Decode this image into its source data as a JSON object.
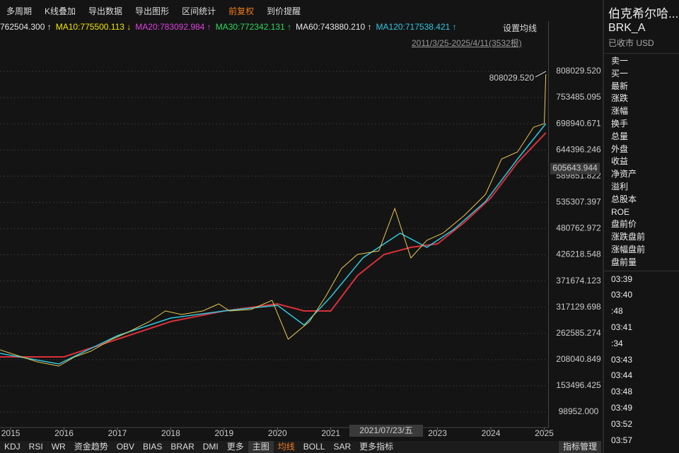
{
  "toolbar": {
    "items": [
      "多周期",
      "K线叠加",
      "导出数据",
      "导出图形",
      "区间统计",
      "前复权",
      "到价提醒"
    ],
    "active": 5
  },
  "ma_legend": [
    {
      "text": "762504.300 ↑",
      "color": "#e6e6e6"
    },
    {
      "text": "MA10:775500.113 ↓",
      "color": "#f2e600"
    },
    {
      "text": "MA20:783092.984 ↑",
      "color": "#e040e0"
    },
    {
      "text": "MA30:772342.131 ↑",
      "color": "#30d860"
    },
    {
      "text": "MA60:743880.210 ↑",
      "color": "#e6e6e6"
    },
    {
      "text": "MA120:717538.421 ↑",
      "color": "#30c8e0"
    }
  ],
  "ma_settings": "设置均线",
  "date_range": "2011/3/25-2025/4/11(3532根)",
  "chart_data": {
    "type": "line",
    "xlim": [
      2014.8,
      2025.08
    ],
    "xticks": [
      2015,
      2016,
      2017,
      2018,
      2019,
      2020,
      2021,
      2023,
      2024,
      2025
    ],
    "ylim": [
      73960,
      885950
    ],
    "yticks": [
      {
        "value": 808029.52,
        "label": "808029.520"
      },
      {
        "value": 753485.095,
        "label": "753485.095"
      },
      {
        "value": 698940.671,
        "label": "698940.671"
      },
      {
        "value": 644396.246,
        "label": "644396.246"
      },
      {
        "value": 589851.822,
        "label": "589851.822"
      },
      {
        "value": 535307.397,
        "label": "535307.397"
      },
      {
        "value": 480762.972,
        "label": "480762.972"
      },
      {
        "value": 426218.548,
        "label": "426218.548"
      },
      {
        "value": 371674.123,
        "label": "371674.123"
      },
      {
        "value": 317129.698,
        "label": "317129.698"
      },
      {
        "value": 262585.274,
        "label": "262585.274"
      },
      {
        "value": 208040.849,
        "label": "208040.849"
      },
      {
        "value": 153496.425,
        "label": "153496.425"
      },
      {
        "value": 98952,
        "label": "98952.000"
      }
    ],
    "grid": true,
    "series": [
      {
        "name": null,
        "color": "#d8303a",
        "width": 2,
        "x": [
          2014.8,
          2016,
          2017,
          2018,
          2019,
          2020,
          2020.5,
          2021,
          2021.5,
          2022,
          2022.5,
          2023,
          2023.5,
          2024,
          2024.5,
          2025.03
        ],
        "values": [
          213703,
          213703,
          250478,
          287253,
          309318,
          324028,
          309318,
          309318,
          382868,
          426998,
          441708,
          449063,
          493193,
          544678,
          618228,
          680010
        ]
      },
      {
        "name": null,
        "color": "#30c8e0",
        "width": 1.5,
        "x": [
          2014.8,
          2015.9,
          2017,
          2018,
          2019,
          2020,
          2020.5,
          2021,
          2021.6,
          2022.3,
          2022.8,
          2023.3,
          2023.9,
          2024.5,
          2025.03
        ],
        "values": [
          221058,
          198993,
          257833,
          294608,
          309318,
          321086,
          279898,
          338738,
          419643,
          471128,
          441708,
          478483,
          537323,
          625583,
          699133
        ]
      },
      {
        "name": null,
        "color": "#e8c850",
        "width": 1,
        "x": [
          2014.8,
          2015,
          2015.5,
          2015.9,
          2016.2,
          2016.5,
          2016.9,
          2017.2,
          2017.6,
          2017.9,
          2018.2,
          2018.6,
          2018.9,
          2019.1,
          2019.5,
          2019.9,
          2020.2,
          2020.6,
          2020.9,
          2021.2,
          2021.5,
          2021.9,
          2022.2,
          2022.5,
          2022.8,
          2023.1,
          2023.5,
          2023.9,
          2024.2,
          2024.5,
          2024.8,
          2025.0,
          2025.03
        ],
        "values": [
          228413,
          221058,
          203406,
          194580,
          213702,
          225471,
          250478,
          265188,
          287253,
          309318,
          301963,
          309318,
          324028,
          309318,
          312260,
          331383,
          250478,
          287253,
          338738,
          397578,
          426998,
          434353,
          522613,
          419643,
          456418,
          471128,
          507903,
          552033,
          625583,
          640293,
          691778,
          699133,
          802103
        ]
      }
    ],
    "max_annotation": {
      "value": 808029.52,
      "label": "808029.520"
    },
    "cursor_price": {
      "value": 605643.944,
      "label": "605643.944"
    },
    "cursor_date": "2021/07/23/五"
  },
  "bottom_tabs": {
    "left": [
      "KDJ",
      "RSI",
      "WR",
      "资金趋势",
      "OBV",
      "BIAS",
      "BRAR",
      "DMI",
      "更多"
    ],
    "main": [
      "主图",
      "均线",
      "BOLL",
      "SAR",
      "更多指标"
    ],
    "active": 1,
    "manage": "指标管理"
  },
  "panel": {
    "title": "伯克希尔哈...",
    "code": "BRK_A",
    "status": "已收市 USD",
    "rows": [
      "卖一",
      "买一",
      "最新",
      "涨跌",
      "涨幅",
      "换手",
      "总量",
      "外盘",
      "收益",
      "净资产",
      "溢利",
      "总股本",
      "ROE",
      "盘前价",
      "涨跌盘前",
      "涨幅盘前",
      "盘前量"
    ],
    "times": [
      "03:39",
      "03:40",
      ":48",
      "03:41",
      ":34",
      "03:43",
      "03:44",
      "03:48",
      "03:49",
      "03:52",
      "03:57"
    ]
  }
}
